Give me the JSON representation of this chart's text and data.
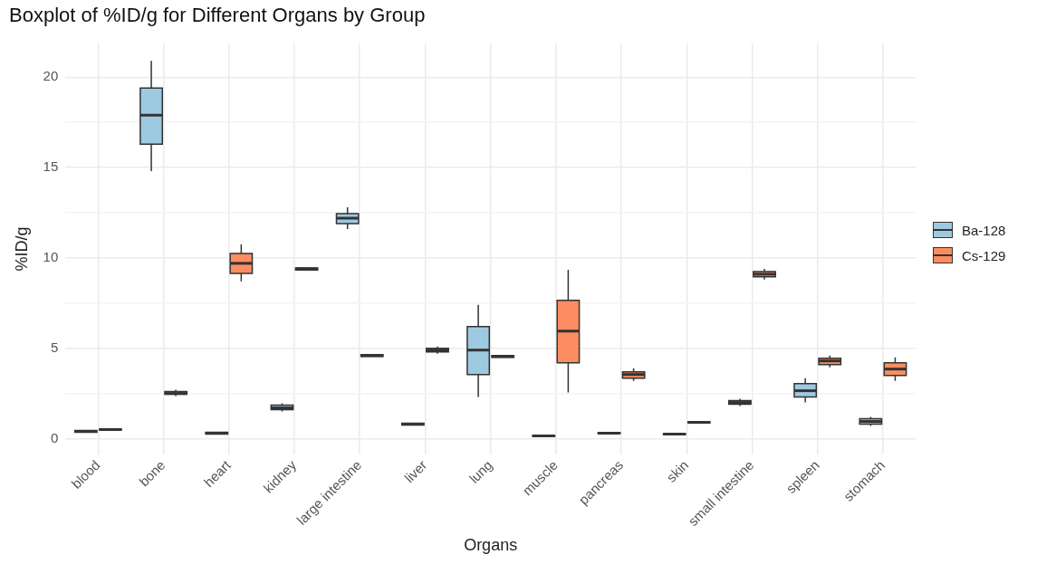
{
  "chart_data": {
    "type": "box",
    "title": "Boxplot of %ID/g for Different Organs by Group",
    "xlabel": "Organs",
    "ylabel": "%ID/g",
    "categories": [
      "blood",
      "bone",
      "heart",
      "kidney",
      "large intestine",
      "liver",
      "lung",
      "muscle",
      "pancreas",
      "skin",
      "small intestine",
      "spleen",
      "stomach"
    ],
    "ylim": [
      -0.9,
      21.9
    ],
    "yticks": [
      0,
      {
        "value": 2.5,
        "label": null
      },
      5,
      {
        "value": 7.5,
        "label": null
      },
      10,
      {
        "value": 12.5,
        "label": null
      },
      15,
      {
        "value": 17.5,
        "label": null
      },
      20
    ],
    "grid": true,
    "legend": "right",
    "series": [
      {
        "name": "Ba-128",
        "color": "#9ecae1",
        "boxes": [
          {
            "low": 0.35,
            "q1": 0.35,
            "median": 0.4,
            "q3": 0.45,
            "high": 0.45
          },
          {
            "low": 14.8,
            "q1": 16.3,
            "median": 17.9,
            "q3": 19.4,
            "high": 20.9
          },
          {
            "low": 0.25,
            "q1": 0.25,
            "median": 0.3,
            "q3": 0.35,
            "high": 0.35
          },
          {
            "low": 1.5,
            "q1": 1.6,
            "median": 1.7,
            "q3": 1.85,
            "high": 1.95
          },
          {
            "low": 11.6,
            "q1": 11.9,
            "median": 12.2,
            "q3": 12.45,
            "high": 12.8
          },
          {
            "low": 0.75,
            "q1": 0.75,
            "median": 0.8,
            "q3": 0.85,
            "high": 0.85
          },
          {
            "low": 2.3,
            "q1": 3.55,
            "median": 4.9,
            "q3": 6.2,
            "high": 7.4
          },
          {
            "low": 0.12,
            "q1": 0.12,
            "median": 0.15,
            "q3": 0.18,
            "high": 0.18
          },
          {
            "low": 0.28,
            "q1": 0.28,
            "median": 0.3,
            "q3": 0.33,
            "high": 0.33
          },
          {
            "low": 0.22,
            "q1": 0.22,
            "median": 0.25,
            "q3": 0.28,
            "high": 0.28
          },
          {
            "low": 1.8,
            "q1": 1.9,
            "median": 2.0,
            "q3": 2.1,
            "high": 2.2
          },
          {
            "low": 2.0,
            "q1": 2.3,
            "median": 2.65,
            "q3": 3.05,
            "high": 3.35
          },
          {
            "low": 0.7,
            "q1": 0.8,
            "median": 0.95,
            "q3": 1.1,
            "high": 1.2
          }
        ]
      },
      {
        "name": "Cs-129",
        "color": "#fc8d62",
        "boxes": [
          {
            "low": 0.48,
            "q1": 0.48,
            "median": 0.5,
            "q3": 0.53,
            "high": 0.53
          },
          {
            "low": 2.35,
            "q1": 2.45,
            "median": 2.5,
            "q3": 2.6,
            "high": 2.7
          },
          {
            "low": 8.7,
            "q1": 9.15,
            "median": 9.7,
            "q3": 10.25,
            "high": 10.75
          },
          {
            "low": 9.33,
            "q1": 9.33,
            "median": 9.4,
            "q3": 9.45,
            "high": 9.45
          },
          {
            "low": 4.55,
            "q1": 4.55,
            "median": 4.6,
            "q3": 4.65,
            "high": 4.65
          },
          {
            "low": 4.7,
            "q1": 4.8,
            "median": 4.9,
            "q3": 5.0,
            "high": 5.1
          },
          {
            "low": 4.5,
            "q1": 4.5,
            "median": 4.55,
            "q3": 4.6,
            "high": 4.6
          },
          {
            "low": 2.55,
            "q1": 4.2,
            "median": 5.95,
            "q3": 7.65,
            "high": 9.35
          },
          {
            "low": 3.2,
            "q1": 3.35,
            "median": 3.55,
            "q3": 3.7,
            "high": 3.9
          },
          {
            "low": 0.87,
            "q1": 0.87,
            "median": 0.9,
            "q3": 0.93,
            "high": 0.93
          },
          {
            "low": 8.8,
            "q1": 8.95,
            "median": 9.1,
            "q3": 9.25,
            "high": 9.4
          },
          {
            "low": 3.95,
            "q1": 4.1,
            "median": 4.3,
            "q3": 4.45,
            "high": 4.6
          },
          {
            "low": 3.2,
            "q1": 3.5,
            "median": 3.85,
            "q3": 4.2,
            "high": 4.5
          }
        ]
      }
    ]
  }
}
